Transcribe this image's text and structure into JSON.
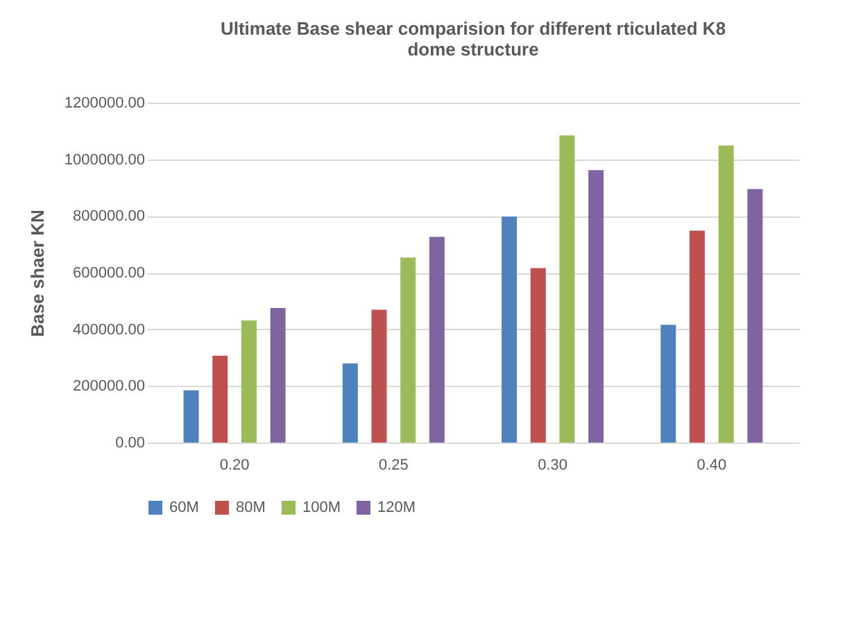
{
  "chart_data": {
    "type": "bar",
    "title": "Ultimate Base shear comparision for different rticulated K8 dome structure",
    "ylabel": "Base shaer KN",
    "categories": [
      "0.20",
      "0.25",
      "0.30",
      "0.40"
    ],
    "series": [
      {
        "name": "60M",
        "color": "#4f81bd",
        "values": [
          184000,
          279000,
          798000,
          416000
        ]
      },
      {
        "name": "80M",
        "color": "#c0504d",
        "values": [
          307000,
          469000,
          616000,
          748000
        ]
      },
      {
        "name": "100M",
        "color": "#9bbb59",
        "values": [
          431000,
          653000,
          1084000,
          1049000
        ]
      },
      {
        "name": "120M",
        "color": "#8064a2",
        "values": [
          475000,
          726000,
          962000,
          895000
        ]
      }
    ],
    "ylim": [
      0,
      1200000
    ],
    "yticks": [
      {
        "value": 0,
        "label": "0.00"
      },
      {
        "value": 200000,
        "label": "200000.00"
      },
      {
        "value": 400000,
        "label": "400000.00"
      },
      {
        "value": 600000,
        "label": "600000.00"
      },
      {
        "value": 800000,
        "label": "800000.00"
      },
      {
        "value": 1000000,
        "label": "1000000.00"
      },
      {
        "value": 1200000,
        "label": "1200000.00"
      }
    ],
    "grid": "y",
    "legend": "bottom"
  }
}
